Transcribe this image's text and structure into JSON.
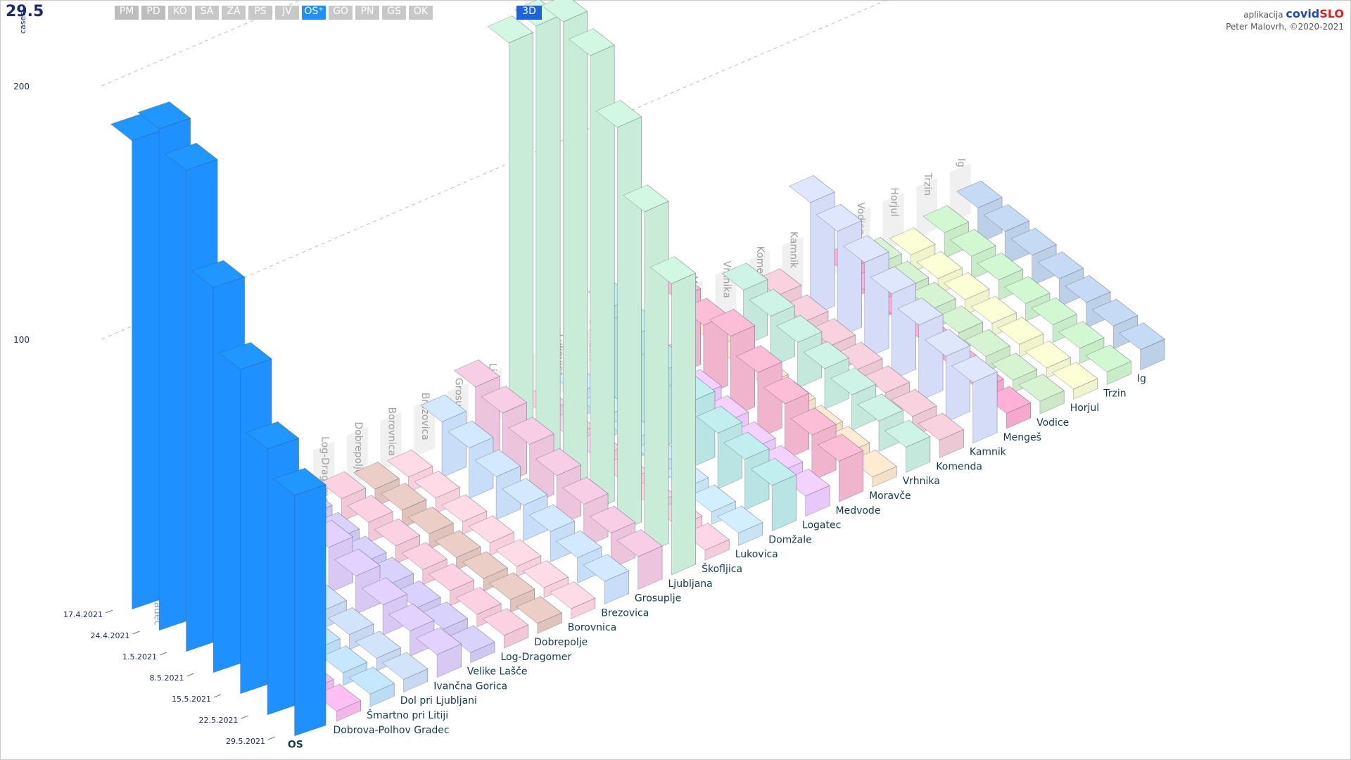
{
  "header": {
    "date_readout": "29.5",
    "regions": [
      {
        "label": "PM",
        "state": "dim"
      },
      {
        "label": "PD",
        "state": "dim"
      },
      {
        "label": "KO",
        "state": "normal"
      },
      {
        "label": "SA",
        "state": "normal"
      },
      {
        "label": "ZA",
        "state": "normal"
      },
      {
        "label": "PS",
        "state": "normal"
      },
      {
        "label": "JV",
        "state": "normal"
      },
      {
        "label": "OS⁺",
        "state": "active"
      },
      {
        "label": "GO",
        "state": "normal"
      },
      {
        "label": "PN",
        "state": "normal"
      },
      {
        "label": "GŠ",
        "state": "normal"
      },
      {
        "label": "OK",
        "state": "normal"
      }
    ],
    "view_mode": "3D"
  },
  "brand": {
    "prefix": "aplikacija",
    "name_part1": "covid",
    "name_part2": "SLO",
    "author": "Peter Malovrh, ©2020-2021"
  },
  "colors": {
    "os_total": "#1e90ff",
    "accent": "#1e64d8",
    "date_readout": "#1a2a6c"
  },
  "chart_data": {
    "type": "bar",
    "projection": "3d",
    "ylabel": "cases",
    "yticks": [
      100,
      200
    ],
    "ylim": [
      0,
      230
    ],
    "dates": [
      "17.4.2021",
      "24.4.2021",
      "1.5.2021",
      "8.5.2021",
      "15.5.2021",
      "22.5.2021",
      "29.5.2021"
    ],
    "series": [
      {
        "name": "OS",
        "color": "#1e90ff",
        "values": [
          185,
          198,
          190,
          152,
          128,
          105,
          95
        ]
      },
      {
        "name": "Dobrova-Polhov Gradec",
        "color": "#f4b6e8",
        "values": [
          7,
          8,
          6,
          5,
          5,
          4,
          4
        ]
      },
      {
        "name": "Šmartno pri Litiji",
        "color": "#bcdcf4",
        "values": [
          9,
          9,
          8,
          7,
          6,
          5,
          5
        ]
      },
      {
        "name": "Dol pri Ljubljani",
        "color": "#c8d8f0",
        "values": [
          10,
          11,
          9,
          7,
          6,
          5,
          5
        ]
      },
      {
        "name": "Ivančna Gorica",
        "color": "#d8c8f4",
        "values": [
          26,
          22,
          18,
          15,
          12,
          10,
          9
        ]
      },
      {
        "name": "Velike  Lašče",
        "color": "#cec8f0",
        "values": [
          8,
          7,
          6,
          6,
          5,
          5,
          4
        ]
      },
      {
        "name": "Log-Dragomer",
        "color": "#f0c8d8",
        "values": [
          9,
          8,
          7,
          6,
          6,
          5,
          5
        ]
      },
      {
        "name": "Dobrepolje",
        "color": "#e0c4bc",
        "values": [
          7,
          7,
          6,
          5,
          5,
          5,
          4
        ]
      },
      {
        "name": "Borovnica",
        "color": "#f8d0dc",
        "values": [
          6,
          6,
          5,
          5,
          4,
          4,
          4
        ]
      },
      {
        "name": "Brezovica",
        "color": "#c8def8",
        "values": [
          22,
          20,
          17,
          14,
          12,
          10,
          9
        ]
      },
      {
        "name": "Grosuplje",
        "color": "#ecc4dc",
        "values": [
          30,
          28,
          24,
          20,
          17,
          14,
          13
        ]
      },
      {
        "name": "Ljubljana",
        "color": "#c8ecd8",
        "values": [
          160,
          175,
          185,
          180,
          160,
          135,
          115
        ]
      },
      {
        "name": "Škofljica",
        "color": "#f4ccdc",
        "values": [
          8,
          7,
          7,
          6,
          5,
          5,
          4
        ]
      },
      {
        "name": "Lukovica",
        "color": "#c8e4f4",
        "values": [
          10,
          9,
          8,
          7,
          6,
          5,
          5
        ]
      },
      {
        "name": "Domžale",
        "color": "#b8e4e4",
        "values": [
          38,
          36,
          30,
          26,
          22,
          20,
          18
        ]
      },
      {
        "name": "Logatec",
        "color": "#e8c8f8",
        "values": [
          18,
          16,
          14,
          12,
          10,
          9,
          8
        ]
      },
      {
        "name": "Medvode",
        "color": "#f0b4cc",
        "values": [
          30,
          28,
          32,
          26,
          22,
          18,
          16
        ]
      },
      {
        "name": "Moravče",
        "color": "#f4e0c8",
        "values": [
          8,
          7,
          7,
          6,
          5,
          5,
          4
        ]
      },
      {
        "name": "Vrhnika",
        "color": "#c4e8dc",
        "values": [
          22,
          20,
          18,
          16,
          14,
          12,
          10
        ]
      },
      {
        "name": "Komenda",
        "color": "#ecc8d4",
        "values": [
          14,
          12,
          11,
          10,
          9,
          8,
          7
        ]
      },
      {
        "name": "Kamnik",
        "color": "#d4dcf8",
        "values": [
          45,
          42,
          38,
          34,
          30,
          26,
          24
        ]
      },
      {
        "name": "Mengeš",
        "color": "#f4a8cc",
        "values": [
          12,
          11,
          10,
          9,
          8,
          7,
          6
        ]
      },
      {
        "name": "Vodice",
        "color": "#cce8c8",
        "values": [
          9,
          8,
          8,
          7,
          6,
          5,
          5
        ]
      },
      {
        "name": "Horjul",
        "color": "#f0f4cc",
        "values": [
          7,
          6,
          6,
          5,
          5,
          4,
          4
        ]
      },
      {
        "name": "Trzin",
        "color": "#c8ecc8",
        "values": [
          10,
          9,
          8,
          7,
          7,
          6,
          5
        ]
      },
      {
        "name": "Ig",
        "color": "#bcd0e8",
        "values": [
          14,
          13,
          12,
          11,
          10,
          9,
          8
        ]
      }
    ]
  }
}
